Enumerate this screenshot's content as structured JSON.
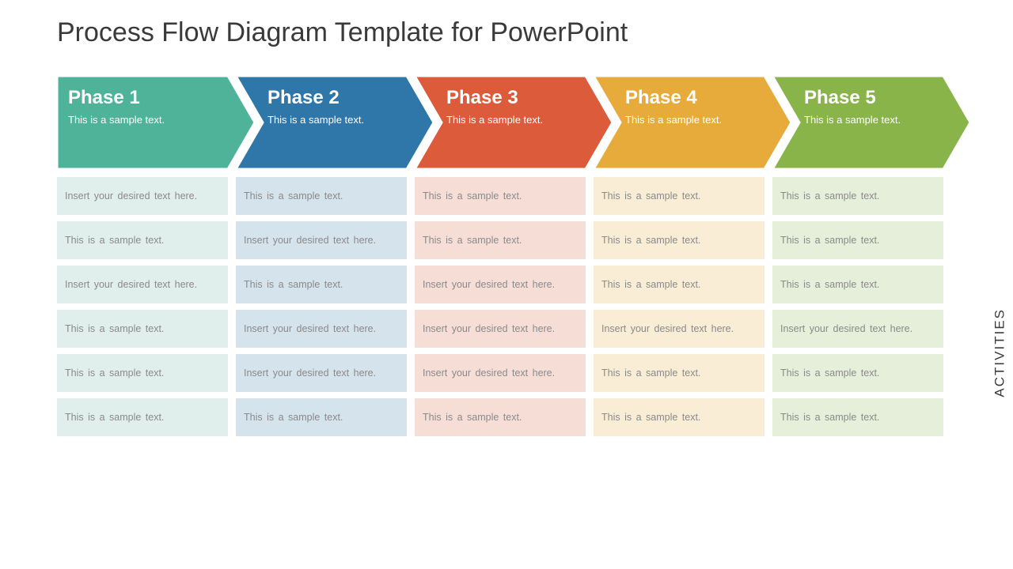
{
  "title": "Process Flow Diagram Template for PowerPoint",
  "side_label": "ACTIVITIES",
  "layout": {
    "phase_count": 5,
    "activity_rows": 6,
    "arrow_body_w": 216,
    "arrow_head_w": 34,
    "arrow_h": 118,
    "arrow_step": 226,
    "stroke": "#ffffff",
    "stroke_w": 3
  },
  "phases": [
    {
      "label": "Phase 1",
      "sub": "This is a sample text.",
      "color": "#4fb39a",
      "light": "#e0efeb"
    },
    {
      "label": "Phase 2",
      "sub": "This is a sample text.",
      "color": "#2e77a8",
      "light": "#d5e3ed"
    },
    {
      "label": "Phase 3",
      "sub": "This is a sample text.",
      "color": "#db5b3a",
      "light": "#f6ded7"
    },
    {
      "label": "Phase 4",
      "sub": "This is a sample text.",
      "color": "#e7ab3b",
      "light": "#f9edd6"
    },
    {
      "label": "Phase 5",
      "sub": "This is a sample text.",
      "color": "#88b44a",
      "light": "#e6efd9"
    }
  ],
  "activities": [
    [
      "Insert your desired text here.",
      "This  is a sample  text.",
      "This  is a sample  text.",
      "This  is a sample  text.",
      "This  is a sample  text."
    ],
    [
      "This  is a sample  text.",
      "Insert your desired text here.",
      "This  is a sample  text.",
      "This  is a sample  text.",
      "This  is a sample  text."
    ],
    [
      "Insert your desired text here.",
      "This  is a sample  text.",
      "Insert your desired text here.",
      "This  is a sample  text.",
      "This  is a sample  text."
    ],
    [
      "This  is a sample  text.",
      "Insert your desired text here.",
      "Insert your desired text here.",
      "Insert your desired text here.",
      "Insert your desired text here."
    ],
    [
      "This  is a sample  text.",
      "Insert your desired text here.",
      "Insert your desired text here.",
      "This  is a sample  text.",
      "This  is a sample  text."
    ],
    [
      "This  is a sample  text.",
      "This  is a sample  text.",
      "This  is a sample  text.",
      "This  is a sample  text.",
      "This  is a sample  text."
    ]
  ]
}
